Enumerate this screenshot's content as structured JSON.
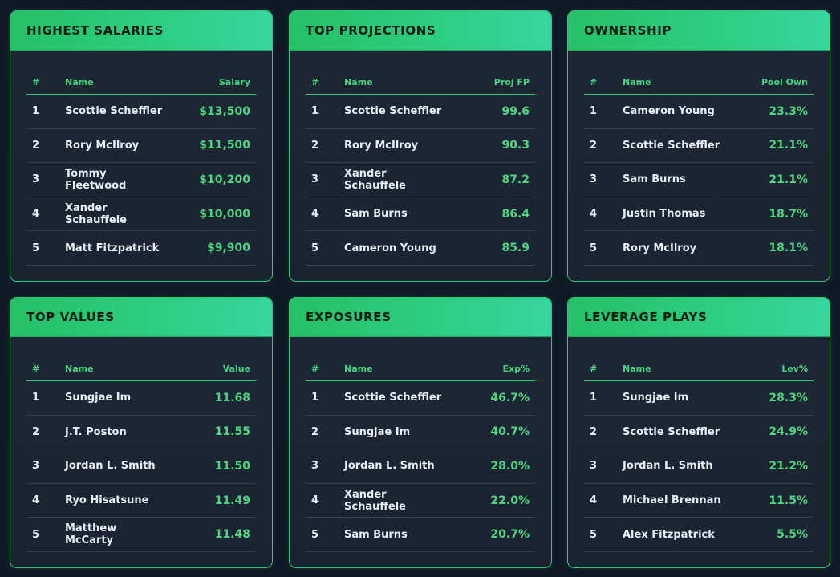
{
  "cards": [
    {
      "title": "HIGHEST SALARIES",
      "headers": {
        "rank": "#",
        "name": "Name",
        "value": "Salary"
      },
      "rows": [
        {
          "rank": "1",
          "name": "Scottie Scheffler",
          "value": "$13,500"
        },
        {
          "rank": "2",
          "name": "Rory McIlroy",
          "value": "$11,500"
        },
        {
          "rank": "3",
          "name": "Tommy Fleetwood",
          "value": "$10,200"
        },
        {
          "rank": "4",
          "name": "Xander Schauffele",
          "value": "$10,000"
        },
        {
          "rank": "5",
          "name": "Matt Fitzpatrick",
          "value": "$9,900"
        }
      ]
    },
    {
      "title": "TOP PROJECTIONS",
      "headers": {
        "rank": "#",
        "name": "Name",
        "value": "Proj FP"
      },
      "rows": [
        {
          "rank": "1",
          "name": "Scottie Scheffler",
          "value": "99.6"
        },
        {
          "rank": "2",
          "name": "Rory McIlroy",
          "value": "90.3"
        },
        {
          "rank": "3",
          "name": "Xander Schauffele",
          "value": "87.2"
        },
        {
          "rank": "4",
          "name": "Sam Burns",
          "value": "86.4"
        },
        {
          "rank": "5",
          "name": "Cameron Young",
          "value": "85.9"
        }
      ]
    },
    {
      "title": "OWNERSHIP",
      "headers": {
        "rank": "#",
        "name": "Name",
        "value": "Pool Own"
      },
      "rows": [
        {
          "rank": "1",
          "name": "Cameron Young",
          "value": "23.3%"
        },
        {
          "rank": "2",
          "name": "Scottie Scheffler",
          "value": "21.1%"
        },
        {
          "rank": "3",
          "name": "Sam Burns",
          "value": "21.1%"
        },
        {
          "rank": "4",
          "name": "Justin Thomas",
          "value": "18.7%"
        },
        {
          "rank": "5",
          "name": "Rory McIlroy",
          "value": "18.1%"
        }
      ]
    },
    {
      "title": "TOP VALUES",
      "headers": {
        "rank": "#",
        "name": "Name",
        "value": "Value"
      },
      "rows": [
        {
          "rank": "1",
          "name": "Sungjae Im",
          "value": "11.68"
        },
        {
          "rank": "2",
          "name": "J.T. Poston",
          "value": "11.55"
        },
        {
          "rank": "3",
          "name": "Jordan L. Smith",
          "value": "11.50"
        },
        {
          "rank": "4",
          "name": "Ryo Hisatsune",
          "value": "11.49"
        },
        {
          "rank": "5",
          "name": "Matthew McCarty",
          "value": "11.48"
        }
      ]
    },
    {
      "title": "EXPOSURES",
      "headers": {
        "rank": "#",
        "name": "Name",
        "value": "Exp%"
      },
      "rows": [
        {
          "rank": "1",
          "name": "Scottie Scheffler",
          "value": "46.7%"
        },
        {
          "rank": "2",
          "name": "Sungjae Im",
          "value": "40.7%"
        },
        {
          "rank": "3",
          "name": "Jordan L. Smith",
          "value": "28.0%"
        },
        {
          "rank": "4",
          "name": "Xander Schauffele",
          "value": "22.0%"
        },
        {
          "rank": "5",
          "name": "Sam Burns",
          "value": "20.7%"
        }
      ]
    },
    {
      "title": "LEVERAGE PLAYS",
      "headers": {
        "rank": "#",
        "name": "Name",
        "value": "Lev%"
      },
      "rows": [
        {
          "rank": "1",
          "name": "Sungjae Im",
          "value": "28.3%"
        },
        {
          "rank": "2",
          "name": "Scottie Scheffler",
          "value": "24.9%"
        },
        {
          "rank": "3",
          "name": "Jordan L. Smith",
          "value": "21.2%"
        },
        {
          "rank": "4",
          "name": "Michael Brennan",
          "value": "11.5%"
        },
        {
          "rank": "5",
          "name": "Alex Fitzpatrick",
          "value": "5.5%"
        }
      ]
    }
  ],
  "colors": {
    "accent": "#2ecc71",
    "background": "#101a27",
    "card": "#1e2836",
    "value_text": "#4cd67f"
  }
}
